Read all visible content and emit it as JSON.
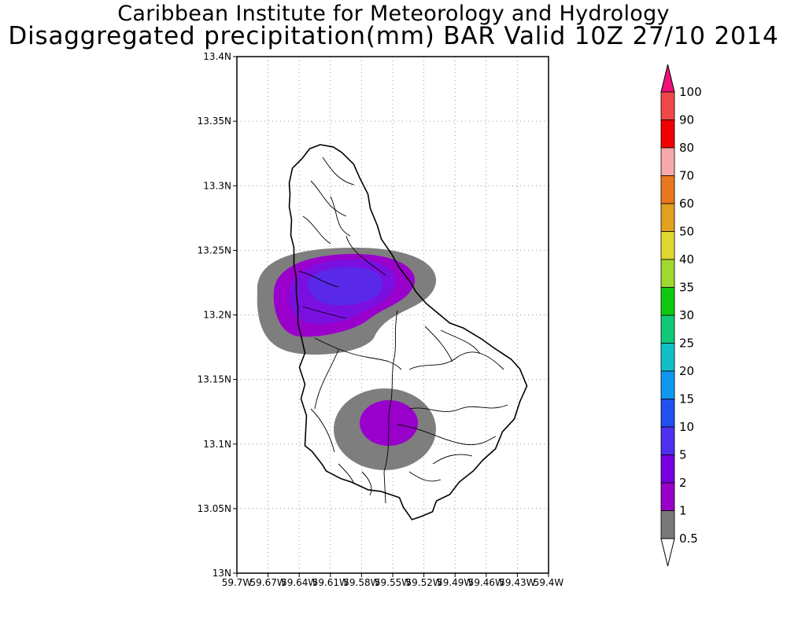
{
  "title_line1": "Caribbean Institute for Meteorology and Hydrology",
  "title_line2": "Disaggregated precipitation(mm) BAR Valid 10Z 27/10 2014",
  "map": {
    "lat_ticks": [
      "13.4N",
      "13.35N",
      "13.3N",
      "13.25N",
      "13.2N",
      "13.15N",
      "13.1N",
      "13.05N",
      "13N"
    ],
    "lon_ticks": [
      "59.7W",
      "59.67W",
      "59.64W",
      "59.61W",
      "59.58W",
      "59.55W",
      "59.52W",
      "59.49W",
      "59.46W",
      "59.43W",
      "59.4W"
    ],
    "grid": "dotted",
    "region": "Barbados"
  },
  "colorbar": {
    "labels": [
      "100",
      "90",
      "80",
      "70",
      "60",
      "50",
      "40",
      "35",
      "30",
      "25",
      "20",
      "15",
      "10",
      "5",
      "2",
      "1",
      "0.5"
    ],
    "colors": [
      "#f0107a",
      "#f04848",
      "#f00000",
      "#f8a8a8",
      "#e87820",
      "#e0a020",
      "#e0d830",
      "#a0d830",
      "#10c810",
      "#10c878",
      "#10c0c8",
      "#1098f0",
      "#2050f0",
      "#5030f0",
      "#7800e0",
      "#9800c8",
      "#787878",
      "#ffffff"
    ]
  },
  "precip_colors": {
    "gray": "#7e7e7e",
    "purple": "#9a00cc",
    "violet": "#7a10e0",
    "blue_violet": "#5a28e8"
  }
}
